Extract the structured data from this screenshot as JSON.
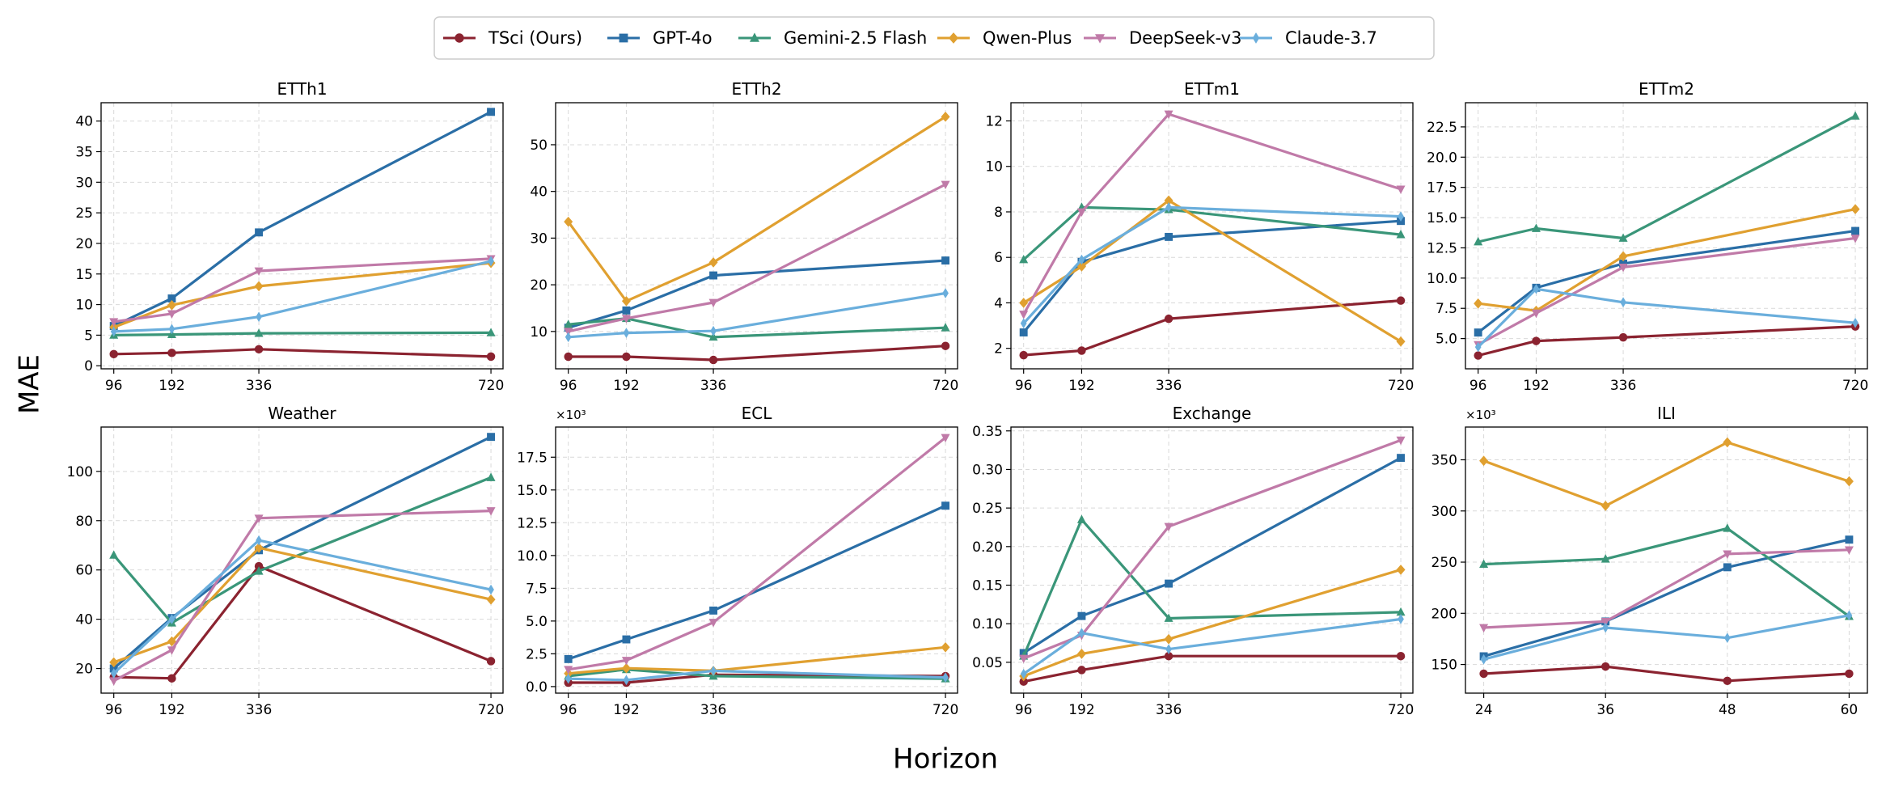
{
  "figure": {
    "ylabel": "MAE",
    "xlabel": "Horizon"
  },
  "legend": [
    {
      "name": "TSci (Ours)",
      "color": "#8b2330",
      "marker": "circle"
    },
    {
      "name": "GPT-4o",
      "color": "#2a6ea6",
      "marker": "square"
    },
    {
      "name": "Gemini-2.5 Flash",
      "color": "#3a9679",
      "marker": "triangle-up"
    },
    {
      "name": "Qwen-Plus",
      "color": "#e0a030",
      "marker": "diamond"
    },
    {
      "name": "DeepSeek-v3",
      "color": "#c07aa8",
      "marker": "triangle-down"
    },
    {
      "name": "Claude-3.7",
      "color": "#6aaedc",
      "marker": "thin-diamond"
    }
  ],
  "chart_data": [
    {
      "type": "line",
      "title": "ETTh1",
      "x": [
        96,
        192,
        336,
        720
      ],
      "xlim": [
        75,
        740
      ],
      "ylim": [
        -0.5,
        43
      ],
      "yticks": [
        0,
        5,
        10,
        15,
        20,
        25,
        30,
        35,
        40
      ],
      "ytick_labels": [
        "0",
        "5",
        "10",
        "15",
        "20",
        "25",
        "30",
        "35",
        "40"
      ],
      "multiplier": "",
      "series": [
        {
          "name": "TSci (Ours)",
          "values": [
            1.9,
            2.1,
            2.7,
            1.5
          ]
        },
        {
          "name": "GPT-4o",
          "values": [
            6.5,
            11.0,
            21.8,
            41.5
          ]
        },
        {
          "name": "Gemini-2.5 Flash",
          "values": [
            5.0,
            5.1,
            5.3,
            5.4
          ]
        },
        {
          "name": "Qwen-Plus",
          "values": [
            6.3,
            9.9,
            13.0,
            16.8
          ]
        },
        {
          "name": "DeepSeek-v3",
          "values": [
            7.2,
            8.5,
            15.5,
            17.5
          ]
        },
        {
          "name": "Claude-3.7",
          "values": [
            5.6,
            6.0,
            8.0,
            17.1
          ]
        }
      ]
    },
    {
      "type": "line",
      "title": "ETTh2",
      "x": [
        96,
        192,
        336,
        720
      ],
      "xlim": [
        75,
        740
      ],
      "ylim": [
        2,
        59
      ],
      "yticks": [
        10,
        20,
        30,
        40,
        50
      ],
      "ytick_labels": [
        "10",
        "20",
        "30",
        "40",
        "50"
      ],
      "multiplier": "",
      "series": [
        {
          "name": "TSci (Ours)",
          "values": [
            4.6,
            4.6,
            3.9,
            6.9
          ]
        },
        {
          "name": "GPT-4o",
          "values": [
            10.8,
            14.5,
            22.0,
            25.2
          ]
        },
        {
          "name": "Gemini-2.5 Flash",
          "values": [
            11.5,
            12.8,
            8.8,
            10.8
          ]
        },
        {
          "name": "Qwen-Plus",
          "values": [
            33.5,
            16.5,
            24.8,
            56.0
          ]
        },
        {
          "name": "DeepSeek-v3",
          "values": [
            10.0,
            12.8,
            16.2,
            41.5
          ]
        },
        {
          "name": "Claude-3.7",
          "values": [
            8.8,
            9.7,
            10.1,
            18.2
          ]
        }
      ]
    },
    {
      "type": "line",
      "title": "ETTm1",
      "x": [
        96,
        192,
        336,
        720
      ],
      "xlim": [
        75,
        740
      ],
      "ylim": [
        1.1,
        12.8
      ],
      "yticks": [
        2,
        4,
        6,
        8,
        10,
        12
      ],
      "ytick_labels": [
        "2",
        "4",
        "6",
        "8",
        "10",
        "12"
      ],
      "multiplier": "",
      "series": [
        {
          "name": "TSci (Ours)",
          "values": [
            1.7,
            1.9,
            3.3,
            4.1
          ]
        },
        {
          "name": "GPT-4o",
          "values": [
            2.7,
            5.8,
            6.9,
            7.6
          ]
        },
        {
          "name": "Gemini-2.5 Flash",
          "values": [
            5.9,
            8.2,
            8.1,
            7.0
          ]
        },
        {
          "name": "Qwen-Plus",
          "values": [
            4.0,
            5.6,
            8.5,
            2.3
          ]
        },
        {
          "name": "DeepSeek-v3",
          "values": [
            3.5,
            8.0,
            12.3,
            9.0
          ]
        },
        {
          "name": "Claude-3.7",
          "values": [
            3.1,
            5.9,
            8.2,
            7.8
          ]
        }
      ]
    },
    {
      "type": "line",
      "title": "ETTm2",
      "x": [
        96,
        192,
        336,
        720
      ],
      "xlim": [
        75,
        740
      ],
      "ylim": [
        2.5,
        24.5
      ],
      "yticks": [
        5,
        7.5,
        10,
        12.5,
        15,
        17.5,
        20,
        22.5
      ],
      "ytick_labels": [
        "5.0",
        "7.5",
        "10.0",
        "12.5",
        "15.0",
        "17.5",
        "20.0",
        "22.5"
      ],
      "multiplier": "",
      "series": [
        {
          "name": "TSci (Ours)",
          "values": [
            3.6,
            4.8,
            5.1,
            6.0
          ]
        },
        {
          "name": "GPT-4o",
          "values": [
            5.5,
            9.2,
            11.2,
            13.9
          ]
        },
        {
          "name": "Gemini-2.5 Flash",
          "values": [
            13.0,
            14.1,
            13.3,
            23.4
          ]
        },
        {
          "name": "Qwen-Plus",
          "values": [
            7.9,
            7.3,
            11.8,
            15.7
          ]
        },
        {
          "name": "DeepSeek-v3",
          "values": [
            4.5,
            7.1,
            10.9,
            13.3
          ]
        },
        {
          "name": "Claude-3.7",
          "values": [
            4.3,
            9.1,
            8.0,
            6.3
          ]
        }
      ]
    },
    {
      "type": "line",
      "title": "Weather",
      "x": [
        96,
        192,
        336,
        720
      ],
      "xlim": [
        75,
        740
      ],
      "ylim": [
        10,
        118
      ],
      "yticks": [
        20,
        40,
        60,
        80,
        100
      ],
      "ytick_labels": [
        "20",
        "40",
        "60",
        "80",
        "100"
      ],
      "multiplier": "",
      "series": [
        {
          "name": "TSci (Ours)",
          "values": [
            16.5,
            16.0,
            61.5,
            23.0
          ]
        },
        {
          "name": "GPT-4o",
          "values": [
            20.0,
            40.5,
            68.0,
            114.0
          ]
        },
        {
          "name": "Gemini-2.5 Flash",
          "values": [
            66.0,
            38.5,
            59.5,
            97.5
          ]
        },
        {
          "name": "Qwen-Plus",
          "values": [
            22.5,
            31.0,
            69.0,
            48.0
          ]
        },
        {
          "name": "DeepSeek-v3",
          "values": [
            15.0,
            27.5,
            81.0,
            84.0
          ]
        },
        {
          "name": "Claude-3.7",
          "values": [
            18.0,
            40.0,
            72.0,
            52.0
          ]
        }
      ]
    },
    {
      "type": "line",
      "title": "ECL",
      "x": [
        96,
        192,
        336,
        720
      ],
      "xlim": [
        75,
        740
      ],
      "ylim": [
        -0.5,
        19.8
      ],
      "yticks": [
        0,
        2.5,
        5,
        7.5,
        10,
        12.5,
        15,
        17.5
      ],
      "ytick_labels": [
        "0.0",
        "2.5",
        "5.0",
        "7.5",
        "10.0",
        "12.5",
        "15.0",
        "17.5"
      ],
      "multiplier": "×10³",
      "series": [
        {
          "name": "TSci (Ours)",
          "values": [
            0.3,
            0.3,
            0.9,
            0.8
          ]
        },
        {
          "name": "GPT-4o",
          "values": [
            2.1,
            3.6,
            5.8,
            13.8
          ]
        },
        {
          "name": "Gemini-2.5 Flash",
          "values": [
            0.8,
            1.3,
            0.8,
            0.6
          ]
        },
        {
          "name": "Qwen-Plus",
          "values": [
            1.0,
            1.4,
            1.2,
            3.0
          ]
        },
        {
          "name": "DeepSeek-v3",
          "values": [
            1.3,
            2.0,
            4.9,
            19.0
          ]
        },
        {
          "name": "Claude-3.7",
          "values": [
            0.6,
            0.5,
            1.2,
            0.7
          ]
        }
      ]
    },
    {
      "type": "line",
      "title": "Exchange",
      "x": [
        96,
        192,
        336,
        720
      ],
      "xlim": [
        75,
        740
      ],
      "ylim": [
        0.01,
        0.355
      ],
      "yticks": [
        0.05,
        0.1,
        0.15,
        0.2,
        0.25,
        0.3,
        0.35
      ],
      "ytick_labels": [
        "0.05",
        "0.10",
        "0.15",
        "0.20",
        "0.25",
        "0.30",
        "0.35"
      ],
      "multiplier": "",
      "series": [
        {
          "name": "TSci (Ours)",
          "values": [
            0.025,
            0.04,
            0.058,
            0.058
          ]
        },
        {
          "name": "GPT-4o",
          "values": [
            0.062,
            0.11,
            0.152,
            0.315
          ]
        },
        {
          "name": "Gemini-2.5 Flash",
          "values": [
            0.058,
            0.235,
            0.107,
            0.115
          ]
        },
        {
          "name": "Qwen-Plus",
          "values": [
            0.032,
            0.061,
            0.08,
            0.17
          ]
        },
        {
          "name": "DeepSeek-v3",
          "values": [
            0.055,
            0.085,
            0.226,
            0.338
          ]
        },
        {
          "name": "Claude-3.7",
          "values": [
            0.035,
            0.088,
            0.067,
            0.106
          ]
        }
      ]
    },
    {
      "type": "line",
      "title": "ILI",
      "x": [
        24,
        36,
        48,
        60
      ],
      "xlim": [
        22.2,
        61.8
      ],
      "ylim": [
        122,
        382
      ],
      "yticks": [
        150,
        200,
        250,
        300,
        350
      ],
      "ytick_labels": [
        "150",
        "200",
        "250",
        "300",
        "350"
      ],
      "multiplier": "×10³",
      "series": [
        {
          "name": "TSci (Ours)",
          "values": [
            141,
            148,
            134,
            141
          ]
        },
        {
          "name": "GPT-4o",
          "values": [
            158,
            192,
            245,
            272
          ]
        },
        {
          "name": "Gemini-2.5 Flash",
          "values": [
            248,
            253,
            283,
            197
          ]
        },
        {
          "name": "Qwen-Plus",
          "values": [
            349,
            305,
            367,
            329
          ]
        },
        {
          "name": "DeepSeek-v3",
          "values": [
            186,
            192,
            258,
            262
          ]
        },
        {
          "name": "Claude-3.7",
          "values": [
            155,
            186,
            176,
            198
          ]
        }
      ]
    }
  ]
}
